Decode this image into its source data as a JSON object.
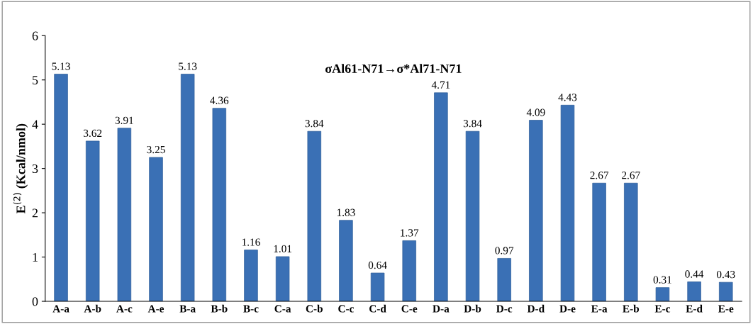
{
  "chart_data": {
    "type": "bar",
    "title": "σAl61-N71→σ*Al71-N71",
    "ylabel": "E$^{(2)}$ (Kcal/nmol)",
    "categories": [
      "A-a",
      "A-b",
      "A-c",
      "A-e",
      "B-a",
      "B-b",
      "B-c",
      "C-a",
      "C-b",
      "C-c",
      "C-d",
      "C-e",
      "D-a",
      "D-b",
      "D-c",
      "D-d",
      "D-e",
      "E-a",
      "E-b",
      "E-c",
      "E-d",
      "E-e"
    ],
    "values": [
      5.13,
      3.62,
      3.91,
      3.25,
      5.13,
      4.36,
      1.16,
      1.01,
      3.84,
      1.83,
      0.64,
      1.37,
      4.71,
      3.84,
      0.97,
      4.09,
      4.43,
      2.67,
      2.67,
      0.31,
      0.44,
      0.43
    ],
    "color": "#3a70b5",
    "ylim": [
      0,
      6
    ],
    "yticks": [
      0,
      1,
      2,
      3,
      4,
      5,
      6
    ],
    "data_labels": true,
    "grid": false,
    "legend": false
  }
}
